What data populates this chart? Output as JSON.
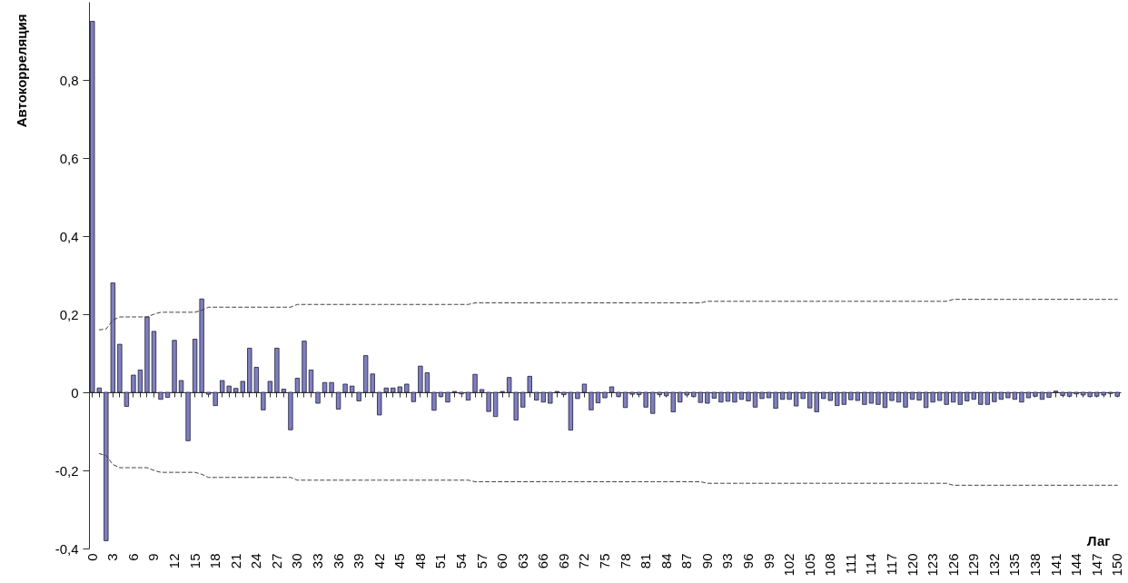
{
  "chart_data": {
    "type": "bar",
    "xlabel": "Лаг",
    "ylabel": "Автокорреляция",
    "categories": [
      "0",
      null,
      null,
      "3",
      null,
      null,
      "6",
      null,
      null,
      "9",
      null,
      null,
      "12",
      null,
      null,
      "15",
      null,
      null,
      "18",
      null,
      null,
      "21",
      null,
      null,
      "24",
      null,
      null,
      "27",
      null,
      null,
      "30",
      null,
      null,
      "33",
      null,
      null,
      "36",
      null,
      null,
      "39",
      null,
      null,
      "42",
      null,
      null,
      "45",
      null,
      null,
      "48",
      null,
      null,
      "51",
      null,
      null,
      "54",
      null,
      null,
      "57",
      null,
      null,
      "60",
      null,
      null,
      "63",
      null,
      null,
      "66",
      null,
      null,
      "69",
      null,
      null,
      "72",
      null,
      null,
      "75",
      null,
      null,
      "78",
      null,
      null,
      "81",
      null,
      null,
      "84",
      null,
      null,
      "87",
      null,
      null,
      "90",
      null,
      null,
      "93",
      null,
      null,
      "96",
      null,
      null,
      "99",
      null,
      null,
      "102",
      null,
      null,
      "105",
      null,
      null,
      "108",
      null,
      null,
      "111",
      null,
      null,
      "114",
      null,
      null,
      "117",
      null,
      null,
      "120",
      null,
      null,
      "123",
      null,
      null,
      "126",
      null,
      null,
      "129",
      null,
      null,
      "132",
      null,
      null,
      "135",
      null,
      null,
      "138",
      null,
      null,
      "141",
      null,
      null,
      "144",
      null,
      null,
      "147",
      null,
      null,
      "150"
    ],
    "series": [
      {
        "color": "#8080c0",
        "values": [
          0.95,
          0.011,
          -0.38,
          0.28,
          0.123,
          -0.036,
          0.044,
          0.057,
          0.193,
          0.156,
          -0.018,
          -0.013,
          0.133,
          0.03,
          -0.124,
          0.136,
          0.239,
          -0.005,
          -0.034,
          0.03,
          0.016,
          0.01,
          0.028,
          0.113,
          0.064,
          -0.045,
          0.028,
          0.113,
          0.008,
          -0.096,
          0.036,
          0.131,
          0.057,
          -0.028,
          0.025,
          0.025,
          -0.043,
          0.021,
          0.016,
          -0.022,
          0.094,
          0.047,
          -0.058,
          0.011,
          0.011,
          0.014,
          0.021,
          -0.024,
          0.067,
          0.05,
          -0.046,
          -0.011,
          -0.025,
          0.002,
          -0.004,
          -0.02,
          0.046,
          0.007,
          -0.049,
          -0.062,
          0.002,
          0.038,
          -0.071,
          -0.038,
          0.041,
          -0.02,
          -0.025,
          -0.028,
          0.002,
          -0.006,
          -0.097,
          -0.016,
          0.021,
          -0.045,
          -0.027,
          -0.014,
          0.014,
          -0.011,
          -0.039,
          -0.005,
          -0.006,
          -0.038,
          -0.054,
          -0.006,
          -0.009,
          -0.05,
          -0.025,
          -0.007,
          -0.011,
          -0.026,
          -0.028,
          -0.015,
          -0.025,
          -0.023,
          -0.025,
          -0.018,
          -0.022,
          -0.038,
          -0.016,
          -0.014,
          -0.041,
          -0.018,
          -0.018,
          -0.035,
          -0.016,
          -0.04,
          -0.05,
          -0.016,
          -0.021,
          -0.034,
          -0.031,
          -0.019,
          -0.021,
          -0.031,
          -0.028,
          -0.031,
          -0.039,
          -0.021,
          -0.025,
          -0.038,
          -0.018,
          -0.02,
          -0.039,
          -0.025,
          -0.021,
          -0.031,
          -0.025,
          -0.031,
          -0.022,
          -0.018,
          -0.031,
          -0.031,
          -0.024,
          -0.018,
          -0.014,
          -0.018,
          -0.025,
          -0.014,
          -0.01,
          -0.018,
          -0.013,
          0.003,
          -0.008,
          -0.01,
          -0.004,
          -0.007,
          -0.011,
          -0.01,
          -0.007,
          -0.003,
          -0.01
        ]
      },
      {
        "type": "line",
        "color": "#404040",
        "values": [
          null,
          0.16,
          0.162,
          0.185,
          0.193,
          0.193,
          0.193,
          0.193,
          0.193,
          0.2,
          0.205,
          0.205,
          0.205,
          0.205,
          0.205,
          0.205,
          0.21,
          0.218,
          0.218,
          0.218,
          0.218,
          0.218,
          0.218,
          0.218,
          0.218,
          0.218,
          0.218,
          0.218,
          0.218,
          0.218,
          0.225,
          0.225,
          0.225,
          0.225,
          0.225,
          0.225,
          0.225,
          0.225,
          0.225,
          0.225,
          0.225,
          0.225,
          0.225,
          0.225,
          0.225,
          0.225,
          0.225,
          0.225,
          0.225,
          0.225,
          0.225,
          0.225,
          0.225,
          0.225,
          0.225,
          0.225,
          0.229,
          0.229,
          0.229,
          0.229,
          0.229,
          0.229,
          0.229,
          0.229,
          0.229,
          0.229,
          0.229,
          0.229,
          0.229,
          0.229,
          0.229,
          0.229,
          0.229,
          0.229,
          0.229,
          0.229,
          0.229,
          0.229,
          0.229,
          0.229,
          0.229,
          0.229,
          0.229,
          0.229,
          0.229,
          0.229,
          0.229,
          0.229,
          0.229,
          0.229,
          0.233,
          0.233,
          0.233,
          0.233,
          0.233,
          0.233,
          0.233,
          0.233,
          0.233,
          0.233,
          0.233,
          0.233,
          0.233,
          0.233,
          0.233,
          0.233,
          0.233,
          0.233,
          0.233,
          0.233,
          0.233,
          0.233,
          0.233,
          0.233,
          0.233,
          0.233,
          0.233,
          0.233,
          0.233,
          0.233,
          0.233,
          0.233,
          0.233,
          0.233,
          0.233,
          0.233,
          0.238,
          0.238,
          0.238,
          0.238,
          0.238,
          0.238,
          0.238,
          0.238,
          0.238,
          0.238,
          0.238,
          0.238,
          0.238,
          0.238,
          0.238,
          0.238,
          0.238,
          0.238,
          0.238,
          0.238,
          0.238,
          0.238,
          0.238,
          0.238,
          0.238
        ]
      },
      {
        "type": "line",
        "color": "#404040",
        "values": [
          null,
          -0.157,
          -0.162,
          -0.185,
          -0.193,
          -0.193,
          -0.193,
          -0.193,
          -0.193,
          -0.2,
          -0.205,
          -0.205,
          -0.205,
          -0.205,
          -0.205,
          -0.205,
          -0.21,
          -0.218,
          -0.218,
          -0.218,
          -0.218,
          -0.218,
          -0.218,
          -0.218,
          -0.218,
          -0.218,
          -0.218,
          -0.218,
          -0.218,
          -0.218,
          -0.225,
          -0.225,
          -0.225,
          -0.225,
          -0.225,
          -0.225,
          -0.225,
          -0.225,
          -0.225,
          -0.225,
          -0.225,
          -0.225,
          -0.225,
          -0.225,
          -0.225,
          -0.225,
          -0.225,
          -0.225,
          -0.225,
          -0.225,
          -0.225,
          -0.225,
          -0.225,
          -0.225,
          -0.225,
          -0.225,
          -0.229,
          -0.229,
          -0.229,
          -0.229,
          -0.229,
          -0.229,
          -0.229,
          -0.229,
          -0.229,
          -0.229,
          -0.229,
          -0.229,
          -0.229,
          -0.229,
          -0.229,
          -0.229,
          -0.229,
          -0.229,
          -0.229,
          -0.229,
          -0.229,
          -0.229,
          -0.229,
          -0.229,
          -0.229,
          -0.229,
          -0.229,
          -0.229,
          -0.229,
          -0.229,
          -0.229,
          -0.229,
          -0.229,
          -0.229,
          -0.233,
          -0.233,
          -0.233,
          -0.233,
          -0.233,
          -0.233,
          -0.233,
          -0.233,
          -0.233,
          -0.233,
          -0.233,
          -0.233,
          -0.233,
          -0.233,
          -0.233,
          -0.233,
          -0.233,
          -0.233,
          -0.233,
          -0.233,
          -0.233,
          -0.233,
          -0.233,
          -0.233,
          -0.233,
          -0.233,
          -0.233,
          -0.233,
          -0.233,
          -0.233,
          -0.233,
          -0.233,
          -0.233,
          -0.233,
          -0.233,
          -0.233,
          -0.238,
          -0.238,
          -0.238,
          -0.238,
          -0.238,
          -0.238,
          -0.238,
          -0.238,
          -0.238,
          -0.238,
          -0.238,
          -0.238,
          -0.238,
          -0.238,
          -0.238,
          -0.238,
          -0.238,
          -0.238,
          -0.238,
          -0.238,
          -0.238,
          -0.238,
          -0.238,
          -0.238,
          -0.238
        ]
      }
    ],
    "ylim": [
      -0.4,
      1.0
    ],
    "yticks": [
      {
        "value": -0.4,
        "label": "-0,4"
      },
      {
        "value": -0.2,
        "label": "-0,2"
      },
      0,
      {
        "value": 0.2,
        "label": "0,2"
      },
      {
        "value": 0.4,
        "label": "0,4"
      },
      {
        "value": 0.6,
        "label": "0,6"
      },
      {
        "value": 0.8,
        "label": "0,8"
      }
    ],
    "line_style": "dashed"
  }
}
